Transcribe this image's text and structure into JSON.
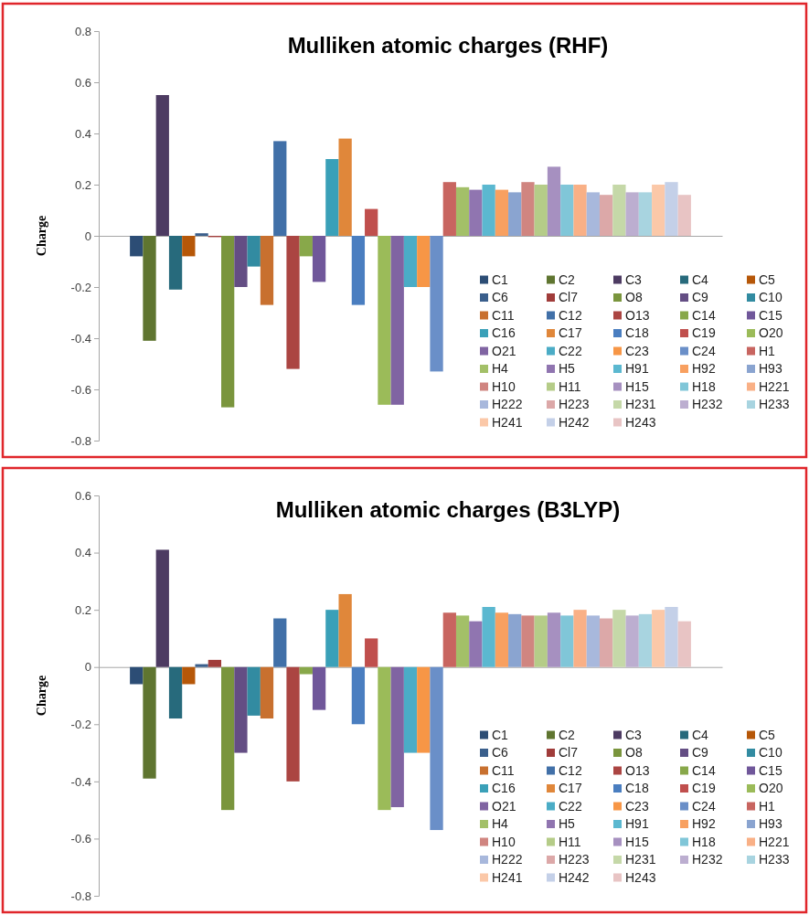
{
  "chart_data": [
    {
      "type": "bar",
      "title": "Mulliken atomic charges (RHF)",
      "ylabel": "Charge",
      "categories": [
        null
      ],
      "ylim": [
        -0.8,
        0.8
      ],
      "yticks": [
        -0.8,
        -0.6,
        -0.4,
        -0.2,
        0,
        0.2,
        0.4,
        0.6,
        0.8
      ],
      "legend": "bottom right",
      "series": [
        {
          "name": "C1",
          "color": "#2c4d75",
          "values": [
            -0.08
          ]
        },
        {
          "name": "C2",
          "color": "#5f7530",
          "values": [
            -0.41
          ]
        },
        {
          "name": "C3",
          "color": "#4d3b62",
          "values": [
            0.55
          ]
        },
        {
          "name": "C4",
          "color": "#276a7c",
          "values": [
            -0.21
          ]
        },
        {
          "name": "C5",
          "color": "#b65708",
          "values": [
            -0.08
          ]
        },
        {
          "name": "C6",
          "color": "#3a5f8c",
          "values": [
            0.01
          ]
        },
        {
          "name": "Cl7",
          "color": "#a03c3a",
          "values": [
            -0.005
          ]
        },
        {
          "name": "O8",
          "color": "#7a953d",
          "values": [
            -0.67
          ]
        },
        {
          "name": "C9",
          "color": "#644e84",
          "values": [
            -0.2
          ]
        },
        {
          "name": "C10",
          "color": "#328ba1",
          "values": [
            -0.12
          ]
        },
        {
          "name": "C11",
          "color": "#c8702f",
          "values": [
            -0.27
          ]
        },
        {
          "name": "C12",
          "color": "#4170a8",
          "values": [
            0.37
          ]
        },
        {
          "name": "O13",
          "color": "#ab4542",
          "values": [
            -0.52
          ]
        },
        {
          "name": "C14",
          "color": "#88a84a",
          "values": [
            -0.08
          ]
        },
        {
          "name": "C15",
          "color": "#70579a",
          "values": [
            -0.18
          ]
        },
        {
          "name": "C16",
          "color": "#3aa0b8",
          "values": [
            0.3
          ]
        },
        {
          "name": "C17",
          "color": "#e0873a",
          "values": [
            0.38
          ]
        },
        {
          "name": "C18",
          "color": "#4a7ec0",
          "values": [
            -0.27
          ]
        },
        {
          "name": "C19",
          "color": "#c04f4d",
          "values": [
            0.105
          ]
        },
        {
          "name": "O20",
          "color": "#9bbb59",
          "values": [
            -0.66
          ]
        },
        {
          "name": "O21",
          "color": "#8064a2",
          "values": [
            -0.66
          ]
        },
        {
          "name": "C22",
          "color": "#4bacc6",
          "values": [
            -0.2
          ]
        },
        {
          "name": "C23",
          "color": "#f79646",
          "values": [
            -0.2
          ]
        },
        {
          "name": "C24",
          "color": "#6a8fc8",
          "values": [
            -0.53
          ]
        },
        {
          "name": "H1",
          "color": "#c86560",
          "values": [
            0.21
          ]
        },
        {
          "name": "H4",
          "color": "#a3c068",
          "values": [
            0.19
          ]
        },
        {
          "name": "H5",
          "color": "#9075b0",
          "values": [
            0.18
          ]
        },
        {
          "name": "H91",
          "color": "#5bb8d0",
          "values": [
            0.2
          ]
        },
        {
          "name": "H92",
          "color": "#f8a060",
          "values": [
            0.18
          ]
        },
        {
          "name": "H93",
          "color": "#8aa4d0",
          "values": [
            0.17
          ]
        },
        {
          "name": "H10",
          "color": "#d08580",
          "values": [
            0.21
          ]
        },
        {
          "name": "H11",
          "color": "#b5cc88",
          "values": [
            0.2
          ]
        },
        {
          "name": "H15",
          "color": "#a690c0",
          "values": [
            0.27
          ]
        },
        {
          "name": "H18",
          "color": "#80c6d8",
          "values": [
            0.2
          ]
        },
        {
          "name": "H221",
          "color": "#f9b086",
          "values": [
            0.2
          ]
        },
        {
          "name": "H222",
          "color": "#a8b8dc",
          "values": [
            0.17
          ]
        },
        {
          "name": "H223",
          "color": "#dca8a8",
          "values": [
            0.16
          ]
        },
        {
          "name": "H231",
          "color": "#c5d8a8",
          "values": [
            0.2
          ]
        },
        {
          "name": "H232",
          "color": "#bcaed0",
          "values": [
            0.17
          ]
        },
        {
          "name": "H233",
          "color": "#a8d4e0",
          "values": [
            0.17
          ]
        },
        {
          "name": "H241",
          "color": "#fbc8a8",
          "values": [
            0.2
          ]
        },
        {
          "name": "H242",
          "color": "#c4d0e8",
          "values": [
            0.21
          ]
        },
        {
          "name": "H243",
          "color": "#e8c4c4",
          "values": [
            0.16
          ]
        }
      ]
    },
    {
      "type": "bar",
      "title": "Mulliken atomic charges (B3LYP)",
      "ylabel": "Charge",
      "categories": [
        null
      ],
      "ylim": [
        -0.8,
        0.6
      ],
      "yticks": [
        -0.8,
        -0.6,
        -0.4,
        -0.2,
        0,
        0.2,
        0.4,
        0.6
      ],
      "legend": "bottom right",
      "series": [
        {
          "name": "C1",
          "color": "#2c4d75",
          "values": [
            -0.06
          ]
        },
        {
          "name": "C2",
          "color": "#5f7530",
          "values": [
            -0.39
          ]
        },
        {
          "name": "C3",
          "color": "#4d3b62",
          "values": [
            0.41
          ]
        },
        {
          "name": "C4",
          "color": "#276a7c",
          "values": [
            -0.18
          ]
        },
        {
          "name": "C5",
          "color": "#b65708",
          "values": [
            -0.06
          ]
        },
        {
          "name": "C6",
          "color": "#3a5f8c",
          "values": [
            0.01
          ]
        },
        {
          "name": "Cl7",
          "color": "#a03c3a",
          "values": [
            0.025
          ]
        },
        {
          "name": "O8",
          "color": "#7a953d",
          "values": [
            -0.5
          ]
        },
        {
          "name": "C9",
          "color": "#644e84",
          "values": [
            -0.3
          ]
        },
        {
          "name": "C10",
          "color": "#328ba1",
          "values": [
            -0.17
          ]
        },
        {
          "name": "C11",
          "color": "#c8702f",
          "values": [
            -0.18
          ]
        },
        {
          "name": "C12",
          "color": "#4170a8",
          "values": [
            0.17
          ]
        },
        {
          "name": "O13",
          "color": "#ab4542",
          "values": [
            -0.4
          ]
        },
        {
          "name": "C14",
          "color": "#88a84a",
          "values": [
            -0.025
          ]
        },
        {
          "name": "C15",
          "color": "#70579a",
          "values": [
            -0.15
          ]
        },
        {
          "name": "C16",
          "color": "#3aa0b8",
          "values": [
            0.2
          ]
        },
        {
          "name": "C17",
          "color": "#e0873a",
          "values": [
            0.255
          ]
        },
        {
          "name": "C18",
          "color": "#4a7ec0",
          "values": [
            -0.2
          ]
        },
        {
          "name": "C19",
          "color": "#c04f4d",
          "values": [
            0.1
          ]
        },
        {
          "name": "O20",
          "color": "#9bbb59",
          "values": [
            -0.5
          ]
        },
        {
          "name": "O21",
          "color": "#8064a2",
          "values": [
            -0.49
          ]
        },
        {
          "name": "C22",
          "color": "#4bacc6",
          "values": [
            -0.3
          ]
        },
        {
          "name": "C23",
          "color": "#f79646",
          "values": [
            -0.3
          ]
        },
        {
          "name": "C24",
          "color": "#6a8fc8",
          "values": [
            -0.57
          ]
        },
        {
          "name": "H1",
          "color": "#c86560",
          "values": [
            0.19
          ]
        },
        {
          "name": "H4",
          "color": "#a3c068",
          "values": [
            0.18
          ]
        },
        {
          "name": "H5",
          "color": "#9075b0",
          "values": [
            0.16
          ]
        },
        {
          "name": "H91",
          "color": "#5bb8d0",
          "values": [
            0.21
          ]
        },
        {
          "name": "H92",
          "color": "#f8a060",
          "values": [
            0.19
          ]
        },
        {
          "name": "H93",
          "color": "#8aa4d0",
          "values": [
            0.185
          ]
        },
        {
          "name": "H10",
          "color": "#d08580",
          "values": [
            0.18
          ]
        },
        {
          "name": "H11",
          "color": "#b5cc88",
          "values": [
            0.18
          ]
        },
        {
          "name": "H15",
          "color": "#a690c0",
          "values": [
            0.19
          ]
        },
        {
          "name": "H18",
          "color": "#80c6d8",
          "values": [
            0.18
          ]
        },
        {
          "name": "H221",
          "color": "#f9b086",
          "values": [
            0.2
          ]
        },
        {
          "name": "H222",
          "color": "#a8b8dc",
          "values": [
            0.18
          ]
        },
        {
          "name": "H223",
          "color": "#dca8a8",
          "values": [
            0.17
          ]
        },
        {
          "name": "H231",
          "color": "#c5d8a8",
          "values": [
            0.2
          ]
        },
        {
          "name": "H232",
          "color": "#bcaed0",
          "values": [
            0.18
          ]
        },
        {
          "name": "H233",
          "color": "#a8d4e0",
          "values": [
            0.185
          ]
        },
        {
          "name": "H241",
          "color": "#fbc8a8",
          "values": [
            0.2
          ]
        },
        {
          "name": "H242",
          "color": "#c4d0e8",
          "values": [
            0.21
          ]
        },
        {
          "name": "H243",
          "color": "#e8c4c4",
          "values": [
            0.16
          ]
        }
      ]
    }
  ]
}
